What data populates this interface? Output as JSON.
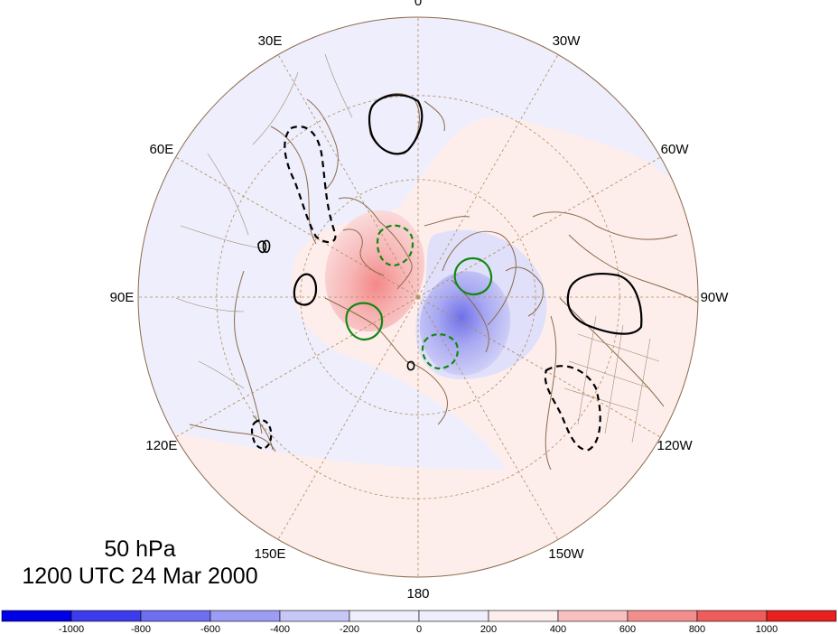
{
  "map": {
    "projection": "north-polar-stereographic",
    "longitude_labels": [
      {
        "id": "lon-0",
        "text": "0",
        "lon": 0
      },
      {
        "id": "lon-30w",
        "text": "30W",
        "lon": -30
      },
      {
        "id": "lon-60w",
        "text": "60W",
        "lon": -60
      },
      {
        "id": "lon-90w",
        "text": "90W",
        "lon": -90
      },
      {
        "id": "lon-120w",
        "text": "120W",
        "lon": -120
      },
      {
        "id": "lon-150w",
        "text": "150W",
        "lon": -150
      },
      {
        "id": "lon-180",
        "text": "180",
        "lon": 180
      },
      {
        "id": "lon-150e",
        "text": "150E",
        "lon": 150
      },
      {
        "id": "lon-120e",
        "text": "120E",
        "lon": 120
      },
      {
        "id": "lon-90e",
        "text": "90E",
        "lon": 90
      },
      {
        "id": "lon-60e",
        "text": "60E",
        "lon": 60
      },
      {
        "id": "lon-30e",
        "text": "30E",
        "lon": 30
      }
    ],
    "grid": true,
    "colors": {
      "land_outline": "#8b6a4a",
      "grid": "#b08a5a",
      "positive_contour": "#000000",
      "secondary_contour": "#118811"
    }
  },
  "level": "50 hPa",
  "time": "1200 UTC 24 Mar 2000",
  "colorbar": {
    "ticks": [
      "-1000",
      "-800",
      "-600",
      "-400",
      "-200",
      "0",
      "200",
      "400",
      "600",
      "800",
      "1000"
    ],
    "colors": [
      "#0a0ae8",
      "#3c3cec",
      "#6e6ef0",
      "#9c9cf4",
      "#c8c8f8",
      "#eeeefc",
      "#fdeeee",
      "#f8c0c0",
      "#f48e8e",
      "#ee5c5c",
      "#e82020"
    ]
  }
}
